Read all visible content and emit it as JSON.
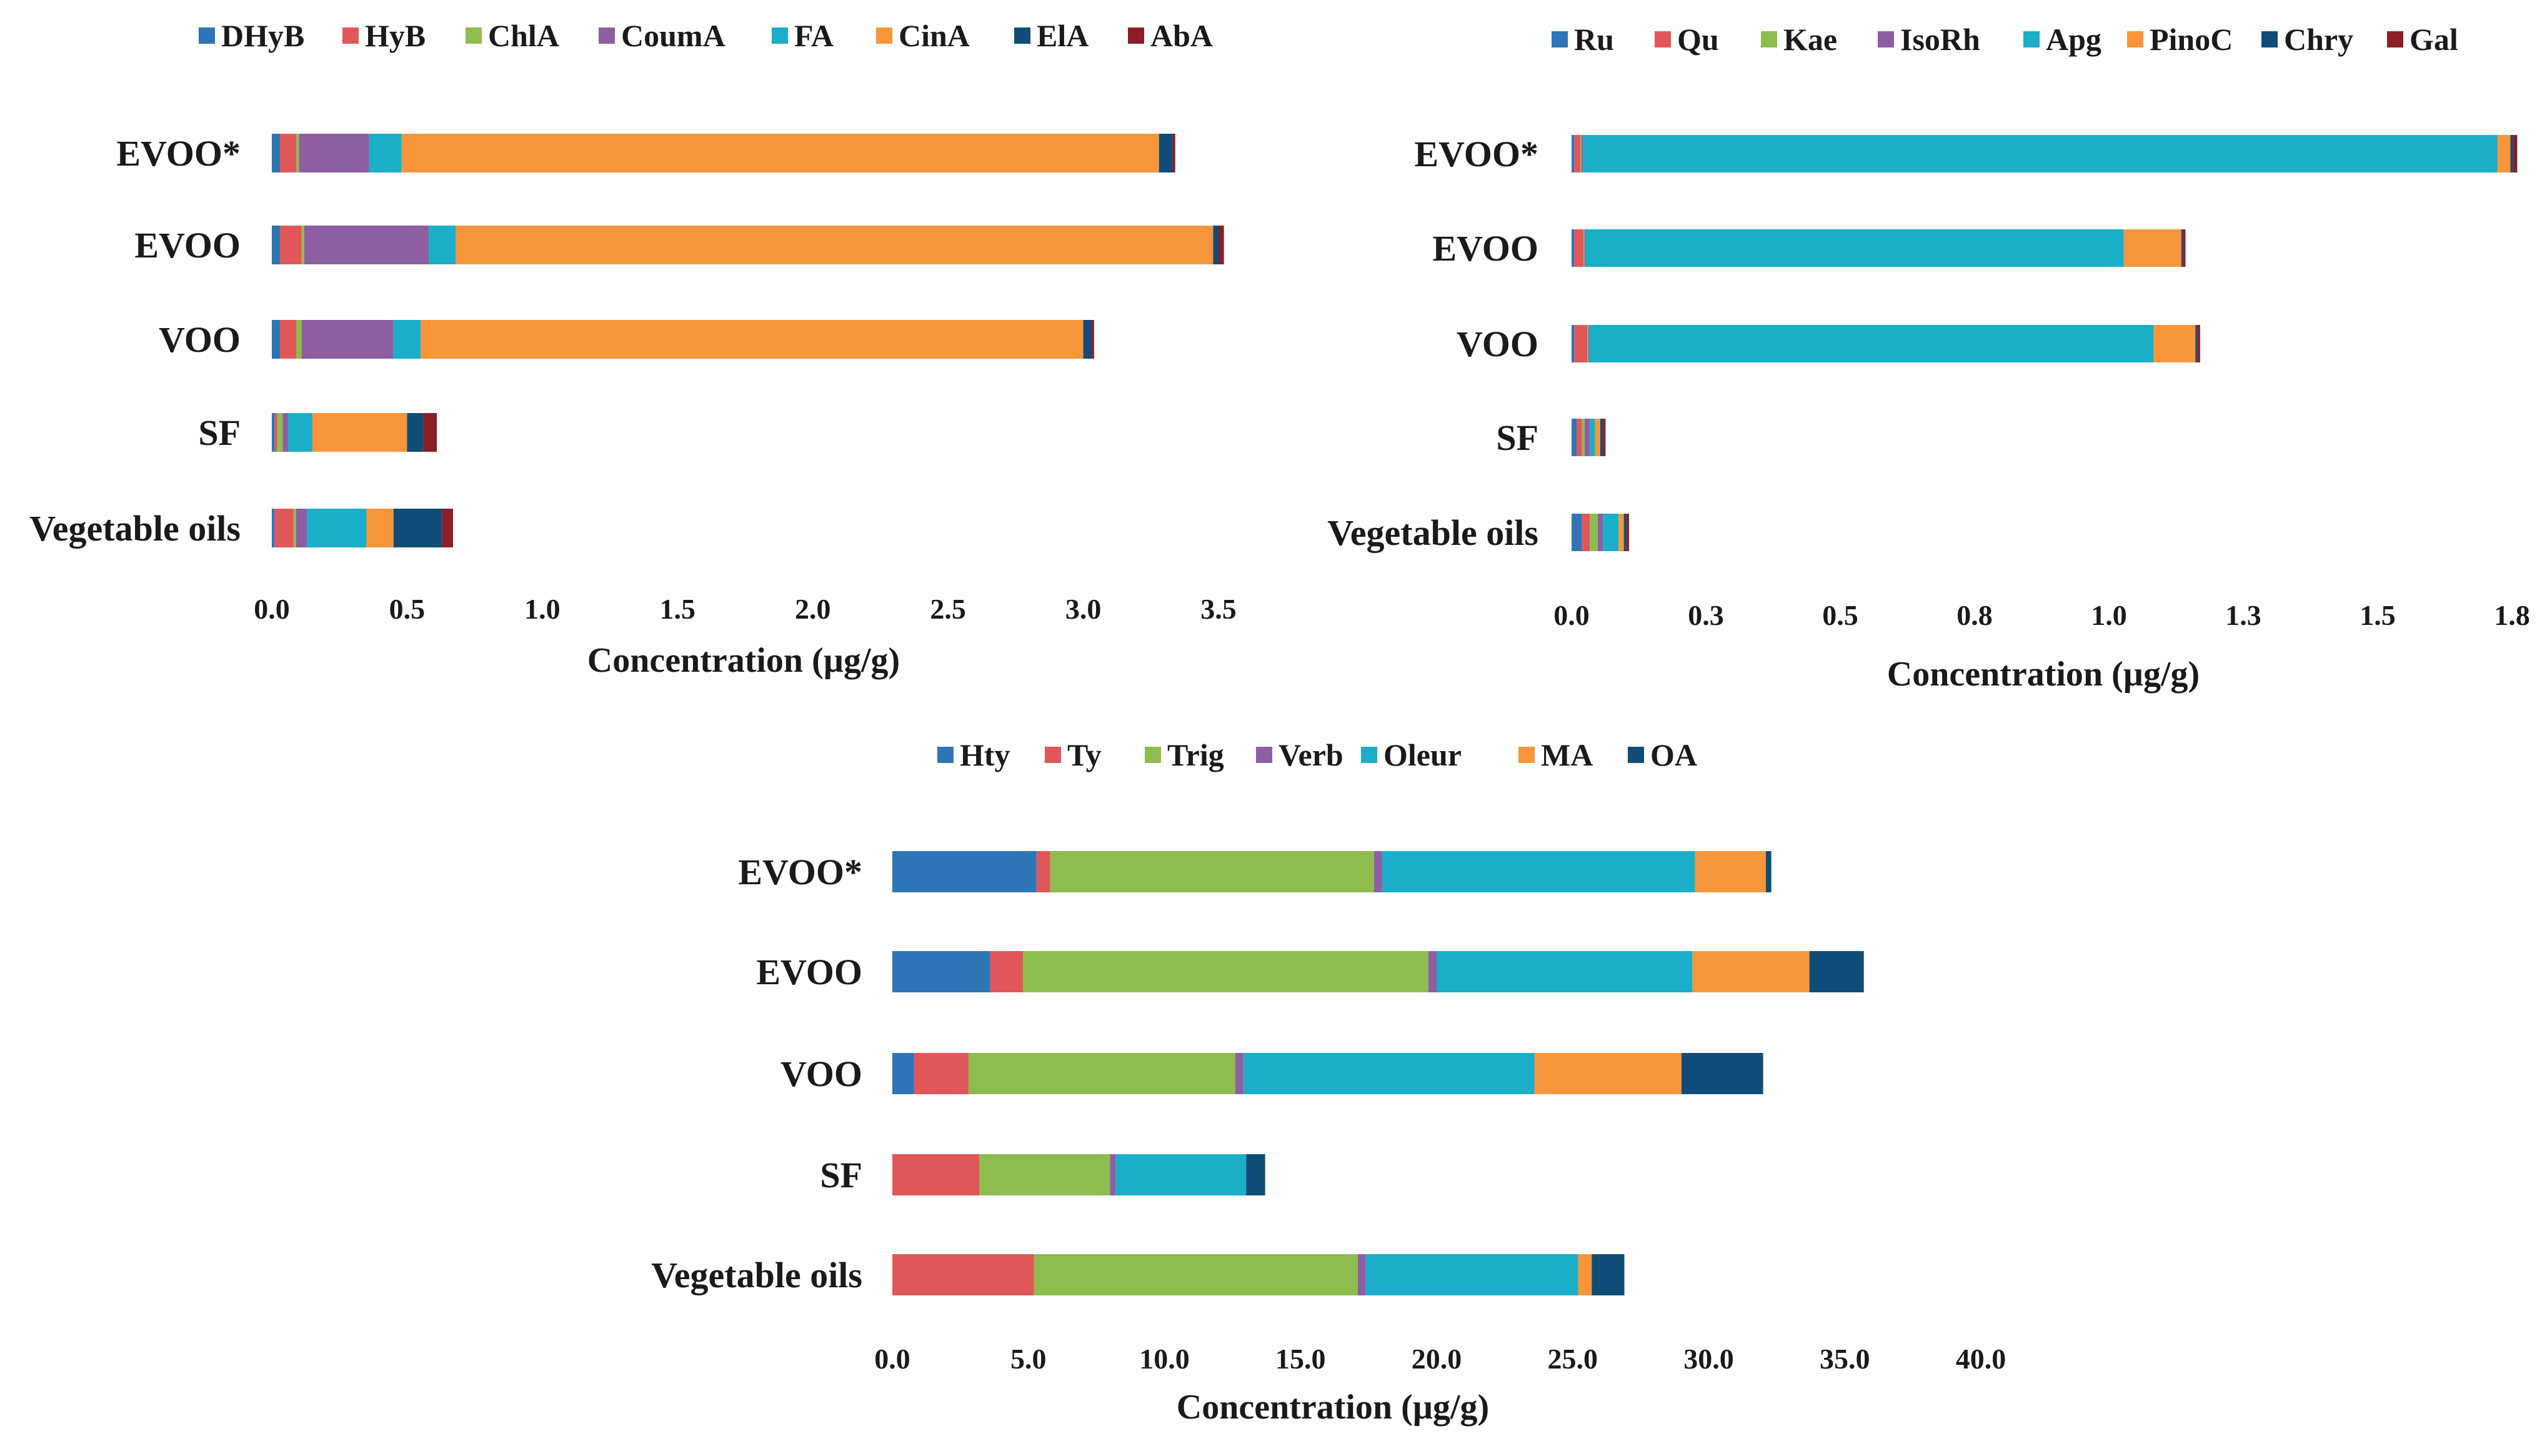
{
  "chart_data": [
    {
      "type": "bar",
      "orientation": "horizontal",
      "stacked": true,
      "title": "",
      "xlabel": "Concentration  (µg/g)",
      "ylabel": "",
      "xlim": [
        0,
        3.5
      ],
      "xticks": [
        "0.0",
        "0.5",
        "1.0",
        "1.5",
        "2.0",
        "2.5",
        "3.0",
        "3.5"
      ],
      "legend_position": "top",
      "categories": [
        "EVOO*",
        "EVOO",
        "VOO",
        "SF",
        "Vegetable oils"
      ],
      "series": [
        {
          "name": "DHyB",
          "color": "#2e75b6",
          "values": [
            0.03,
            0.03,
            0.03,
            0.01,
            0.01
          ]
        },
        {
          "name": "HyB",
          "color": "#e15759",
          "values": [
            0.06,
            0.08,
            0.06,
            0.01,
            0.07
          ]
        },
        {
          "name": "ChlA",
          "color": "#8fbc4f",
          "values": [
            0.01,
            0.01,
            0.02,
            0.02,
            0.01
          ]
        },
        {
          "name": "CoumA",
          "color": "#8e5ea2",
          "values": [
            0.26,
            0.46,
            0.34,
            0.02,
            0.04
          ]
        },
        {
          "name": "FA",
          "color": "#1aaec8",
          "values": [
            0.12,
            0.1,
            0.1,
            0.09,
            0.22
          ]
        },
        {
          "name": "CinA",
          "color": "#f7953a",
          "values": [
            2.8,
            2.8,
            2.45,
            0.35,
            0.1
          ]
        },
        {
          "name": "ElA",
          "color": "#0f4d78",
          "values": [
            0.05,
            0.02,
            0.03,
            0.06,
            0.18
          ]
        },
        {
          "name": "AbA",
          "color": "#8b1e26",
          "values": [
            0.01,
            0.02,
            0.01,
            0.05,
            0.04
          ]
        }
      ]
    },
    {
      "type": "bar",
      "orientation": "horizontal",
      "stacked": true,
      "title": "",
      "xlabel": "Concentration  (µg/g)",
      "ylabel": "",
      "xlim": [
        0,
        1.8
      ],
      "xticks": [
        "0.0",
        "0.3",
        "0.5",
        "0.8",
        "1.0",
        "1.3",
        "1.5",
        "1.8"
      ],
      "legend_position": "top",
      "categories": [
        "EVOO*",
        "EVOO",
        "VOO",
        "SF",
        "Vegetable oils"
      ],
      "series": [
        {
          "name": "Ru",
          "color": "#2e75b6",
          "values": [
            0.005,
            0.005,
            0.005,
            0.01,
            0.02
          ]
        },
        {
          "name": "Qu",
          "color": "#e15759",
          "values": [
            0.012,
            0.018,
            0.025,
            0.01,
            0.015
          ]
        },
        {
          "name": "Kae",
          "color": "#8fbc4f",
          "values": [
            0.002,
            0.002,
            0.002,
            0.005,
            0.015
          ]
        },
        {
          "name": "IsoRh",
          "color": "#8e5ea2",
          "values": [
            0.003,
            0.002,
            0.002,
            0.01,
            0.01
          ]
        },
        {
          "name": "Apg",
          "color": "#1aaec8",
          "values": [
            1.75,
            1.03,
            1.08,
            0.01,
            0.03
          ]
        },
        {
          "name": "PinoC",
          "color": "#f7953a",
          "values": [
            0.025,
            0.11,
            0.08,
            0.01,
            0.01
          ]
        },
        {
          "name": "Chry",
          "color": "#0f4d78",
          "values": [
            0.005,
            0.003,
            0.004,
            0.005,
            0.005
          ]
        },
        {
          "name": "Gal",
          "color": "#8b1e26",
          "values": [
            0.008,
            0.005,
            0.005,
            0.005,
            0.005
          ]
        }
      ]
    },
    {
      "type": "bar",
      "orientation": "horizontal",
      "stacked": true,
      "title": "",
      "xlabel": "Concentration  (µg/g)",
      "ylabel": "",
      "xlim": [
        0,
        40
      ],
      "xticks": [
        "0.0",
        "5.0",
        "10.0",
        "15.0",
        "20.0",
        "25.0",
        "30.0",
        "35.0",
        "40.0"
      ],
      "legend_position": "top",
      "categories": [
        "EVOO*",
        "EVOO",
        "VOO",
        "SF",
        "Vegetable oils"
      ],
      "series": [
        {
          "name": "Hty",
          "color": "#2e75b6",
          "values": [
            5.3,
            3.6,
            0.8,
            0,
            0
          ]
        },
        {
          "name": "Ty",
          "color": "#e15759",
          "values": [
            0.5,
            1.2,
            2.0,
            3.2,
            5.2
          ]
        },
        {
          "name": "Trig",
          "color": "#8fbc4f",
          "values": [
            11.9,
            14.9,
            9.8,
            4.8,
            11.9
          ]
        },
        {
          "name": "Verb",
          "color": "#8e5ea2",
          "values": [
            0.3,
            0.3,
            0.3,
            0.2,
            0.3
          ]
        },
        {
          "name": "Oleur",
          "color": "#1aaec8",
          "values": [
            11.5,
            9.4,
            10.7,
            4.8,
            7.8
          ]
        },
        {
          "name": "MA",
          "color": "#f7953a",
          "values": [
            2.6,
            4.3,
            5.4,
            0,
            0.5
          ]
        },
        {
          "name": "OA",
          "color": "#0f4d78",
          "values": [
            0.2,
            2.0,
            3.0,
            0.7,
            1.2
          ]
        }
      ]
    }
  ]
}
